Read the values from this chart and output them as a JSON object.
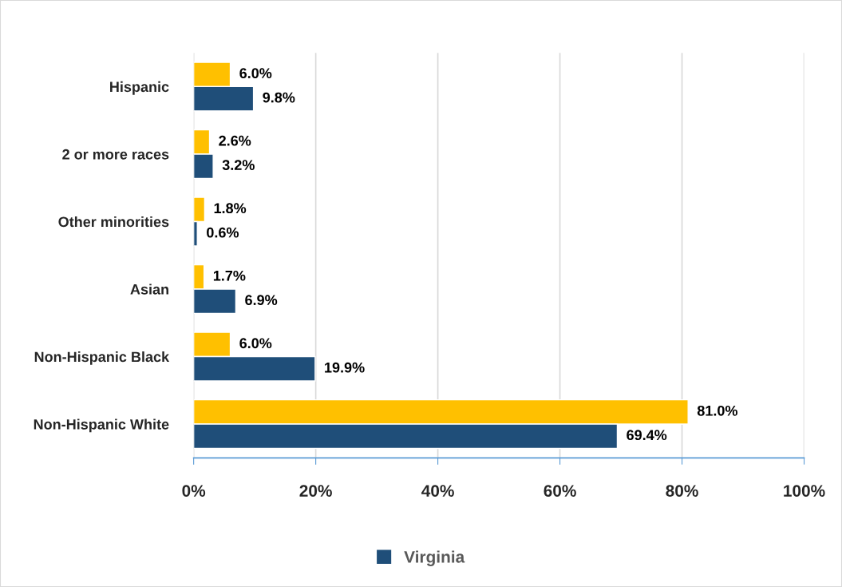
{
  "chart_data": {
    "type": "bar",
    "orientation": "horizontal",
    "categories": [
      "Hispanic",
      "2 or more races",
      "Other minorities",
      "Asian",
      "Non-Hispanic Black",
      "Non-Hispanic White"
    ],
    "series": [
      {
        "color": "#ffc000",
        "values": [
          6.0,
          2.6,
          1.8,
          1.7,
          6.0,
          81.0
        ],
        "value_labels": [
          "6.0%",
          "2.6%",
          "1.8%",
          "1.7%",
          "6.0%",
          "81.0%"
        ]
      },
      {
        "name": "Virginia",
        "color": "#1f4e79",
        "values": [
          9.8,
          3.2,
          0.6,
          6.9,
          19.9,
          69.4
        ],
        "value_labels": [
          "9.8%",
          "3.2%",
          "0.6%",
          "6.9%",
          "19.9%",
          "69.4%"
        ]
      }
    ],
    "xlim": [
      0,
      100
    ],
    "xticks": [
      {
        "value": 0,
        "label": "0%"
      },
      {
        "value": 20,
        "label": "20%"
      },
      {
        "value": 40,
        "label": "40%"
      },
      {
        "value": 60,
        "label": "60%"
      },
      {
        "value": 80,
        "label": "80%"
      },
      {
        "value": 100,
        "label": "100%"
      }
    ],
    "grid": "x",
    "legend": "bottom"
  }
}
